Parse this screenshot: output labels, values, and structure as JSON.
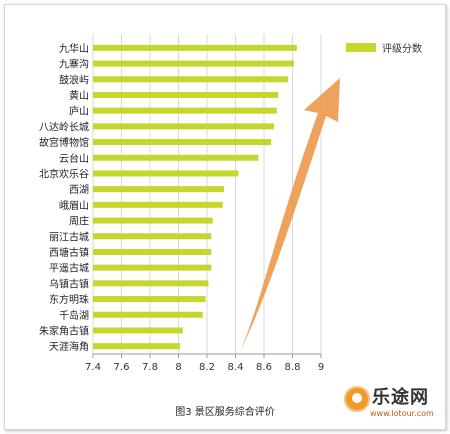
{
  "chart_data": {
    "type": "bar",
    "orientation": "horizontal",
    "categories": [
      "九华山",
      "九寨沟",
      "鼓浪屿",
      "黄山",
      "庐山",
      "八达岭长城",
      "故宫博物馆",
      "云台山",
      "北京欢乐谷",
      "西湖",
      "峨眉山",
      "周庄",
      "丽江古城",
      "西塘古镇",
      "平遥古城",
      "乌镇古镇",
      "东方明珠",
      "千岛湖",
      "朱家角古镇",
      "天涯海角"
    ],
    "series": [
      {
        "name": "评级分数",
        "values": [
          8.83,
          8.81,
          8.77,
          8.7,
          8.69,
          8.67,
          8.65,
          8.56,
          8.42,
          8.32,
          8.31,
          8.24,
          8.23,
          8.23,
          8.23,
          8.21,
          8.19,
          8.17,
          8.03,
          8.01
        ]
      }
    ],
    "xlim": [
      7.4,
      9
    ],
    "xticks": [
      "7.4",
      "7.6",
      "7.8",
      "8",
      "8.2",
      "8.4",
      "8.6",
      "8.8",
      "9"
    ],
    "grid": true,
    "legend": "top-right",
    "title": "",
    "xlabel": "",
    "ylabel": ""
  },
  "colors": {
    "bar": "#c5d62c",
    "grid": "#d9d9d9",
    "arrow": "#ee9a4d"
  },
  "caption": "图3  景区服务综合评价",
  "logo": {
    "name": "乐途网",
    "url": "www.lotour.com"
  }
}
